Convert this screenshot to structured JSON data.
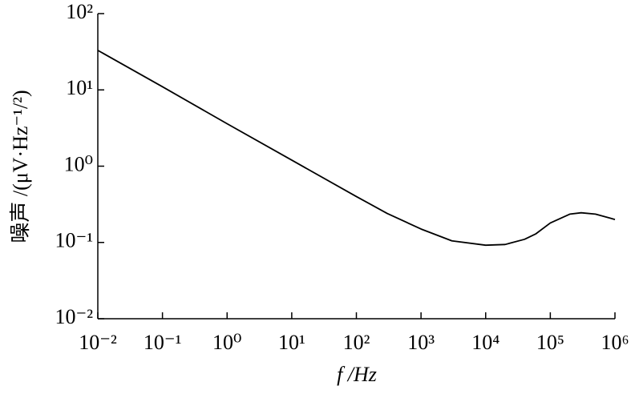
{
  "chart_data": {
    "type": "line",
    "xlabel": "f /Hz",
    "ylabel": "噪声 /(μV·Hz⁻¹/²)",
    "x": [
      0.01,
      0.1,
      1,
      10,
      100,
      300,
      1000,
      3000,
      10000,
      20000,
      40000,
      60000,
      100000,
      200000,
      300000,
      500000,
      1000000
    ],
    "series": [
      {
        "color": "#000000",
        "values": [
          33,
          11,
          3.6,
          1.2,
          0.4,
          0.24,
          0.15,
          0.105,
          0.092,
          0.094,
          0.11,
          0.13,
          0.18,
          0.235,
          0.245,
          0.235,
          0.2
        ]
      }
    ],
    "xscale": "log",
    "yscale": "log",
    "xlim": [
      0.01,
      1000000
    ],
    "ylim": [
      0.01,
      100
    ],
    "xticks": [
      {
        "value": 0.01,
        "label": "10⁻²"
      },
      {
        "value": 0.1,
        "label": "10⁻¹"
      },
      {
        "value": 1,
        "label": "10⁰"
      },
      {
        "value": 10,
        "label": "10¹"
      },
      {
        "value": 100,
        "label": "10²"
      },
      {
        "value": 1000,
        "label": "10³"
      },
      {
        "value": 10000,
        "label": "10⁴"
      },
      {
        "value": 100000,
        "label": "10⁵"
      },
      {
        "value": 1000000,
        "label": "10⁶"
      }
    ],
    "yticks": [
      {
        "value": 0.01,
        "label": "10⁻²"
      },
      {
        "value": 0.1,
        "label": "10⁻¹"
      },
      {
        "value": 1,
        "label": "10⁰"
      },
      {
        "value": 10,
        "label": "10¹"
      },
      {
        "value": 100,
        "label": "10²"
      }
    ],
    "grid": false
  }
}
